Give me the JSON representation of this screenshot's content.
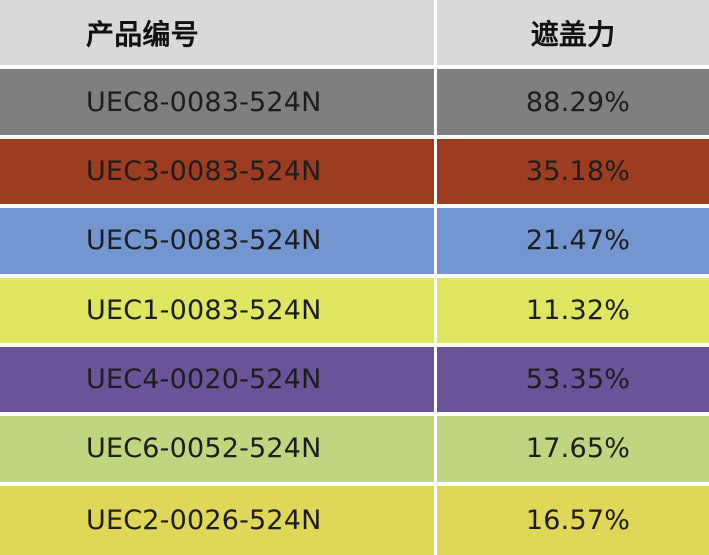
{
  "table": {
    "headers": {
      "product_code": "产品编号",
      "hiding_power": "遮盖力"
    },
    "rows": [
      {
        "code": "UEC8-0083-524N",
        "value": "88.29%",
        "color": "#7f7f7f"
      },
      {
        "code": "UEC3-0083-524N",
        "value": "35.18%",
        "color": "#9c3d21"
      },
      {
        "code": "UEC5-0083-524N",
        "value": "21.47%",
        "color": "#7395d0"
      },
      {
        "code": "UEC1-0083-524N",
        "value": "11.32%",
        "color": "#dfe760"
      },
      {
        "code": "UEC4-0020-524N",
        "value": "53.35%",
        "color": "#6a5399"
      },
      {
        "code": "UEC6-0052-524N",
        "value": "17.65%",
        "color": "#c0d580"
      },
      {
        "code": "UEC2-0026-524N",
        "value": "16.57%",
        "color": "#dfd757"
      }
    ]
  }
}
